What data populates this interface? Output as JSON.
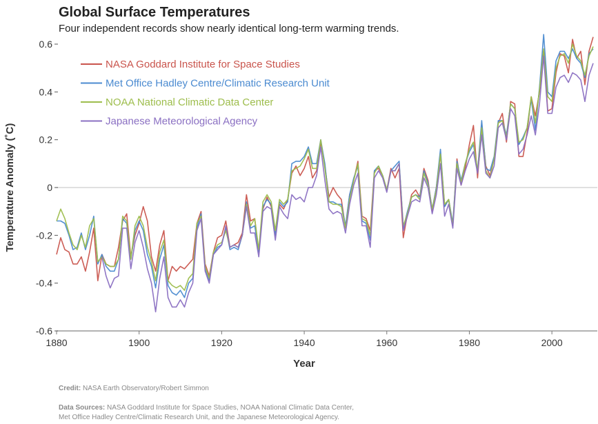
{
  "chart_data": {
    "type": "line",
    "title": "Global Surface Temperatures",
    "subtitle": "Four independent records show nearly identical long-term warming trends.",
    "xlabel": "Year",
    "ylabel": "Temperature Anomaly (˚C)",
    "xlim": [
      1880,
      2010
    ],
    "ylim": [
      -0.6,
      0.6
    ],
    "x_ticks": [
      1880,
      1900,
      1920,
      1940,
      1960,
      1980,
      2000
    ],
    "y_ticks": [
      0.6,
      0.4,
      0.2,
      0,
      -0.2,
      -0.4,
      -0.6
    ],
    "y_tick_labels": [
      "0.6",
      "0.4",
      "0.2",
      "0",
      "-0.2",
      "-0.4",
      "-0.6"
    ],
    "grid": "zero line only",
    "legend_position": "top-left",
    "series": [
      {
        "name": "NASA Goddard Institute for Space Studies",
        "color": "#c9544c",
        "values": [
          -0.28,
          -0.21,
          -0.26,
          -0.27,
          -0.32,
          -0.32,
          -0.29,
          -0.35,
          -0.27,
          -0.17,
          -0.39,
          -0.28,
          -0.32,
          -0.33,
          -0.33,
          -0.25,
          -0.14,
          -0.11,
          -0.29,
          -0.2,
          -0.15,
          -0.08,
          -0.14,
          -0.29,
          -0.35,
          -0.24,
          -0.18,
          -0.39,
          -0.33,
          -0.35,
          -0.33,
          -0.34,
          -0.32,
          -0.3,
          -0.15,
          -0.1,
          -0.32,
          -0.37,
          -0.27,
          -0.21,
          -0.2,
          -0.14,
          -0.25,
          -0.24,
          -0.23,
          -0.19,
          -0.03,
          -0.14,
          -0.13,
          -0.27,
          -0.09,
          -0.04,
          -0.08,
          -0.2,
          -0.07,
          -0.09,
          -0.05,
          0.06,
          0.09,
          0.05,
          0.08,
          0.13,
          0.04,
          0.07,
          0.19,
          0.09,
          -0.04,
          0.0,
          -0.03,
          -0.05,
          -0.17,
          -0.03,
          0.03,
          0.11,
          -0.12,
          -0.13,
          -0.18,
          0.07,
          0.08,
          0.05,
          -0.01,
          0.08,
          0.04,
          0.08,
          -0.21,
          -0.11,
          -0.03,
          -0.01,
          -0.04,
          0.08,
          0.03,
          -0.1,
          0.0,
          0.14,
          -0.08,
          -0.05,
          -0.16,
          0.12,
          0.01,
          0.08,
          0.18,
          0.26,
          0.04,
          0.26,
          0.09,
          0.05,
          0.12,
          0.27,
          0.31,
          0.19,
          0.36,
          0.35,
          0.13,
          0.13,
          0.23,
          0.38,
          0.3,
          0.4,
          0.57,
          0.32,
          0.33,
          0.48,
          0.56,
          0.55,
          0.48,
          0.62,
          0.54,
          0.57,
          0.43,
          0.57,
          0.63
        ]
      },
      {
        "name": "Met Office Hadley Centre/Climatic Research Unit",
        "color": "#4a8ad0",
        "values": [
          -0.14,
          -0.14,
          -0.15,
          -0.2,
          -0.26,
          -0.25,
          -0.19,
          -0.26,
          -0.2,
          -0.12,
          -0.32,
          -0.28,
          -0.33,
          -0.35,
          -0.35,
          -0.3,
          -0.13,
          -0.15,
          -0.3,
          -0.18,
          -0.14,
          -0.18,
          -0.28,
          -0.33,
          -0.42,
          -0.3,
          -0.24,
          -0.41,
          -0.44,
          -0.45,
          -0.43,
          -0.46,
          -0.4,
          -0.38,
          -0.17,
          -0.11,
          -0.34,
          -0.39,
          -0.28,
          -0.25,
          -0.24,
          -0.17,
          -0.26,
          -0.25,
          -0.26,
          -0.2,
          -0.06,
          -0.17,
          -0.16,
          -0.27,
          -0.08,
          -0.05,
          -0.07,
          -0.2,
          -0.06,
          -0.08,
          -0.06,
          0.1,
          0.11,
          0.11,
          0.13,
          0.17,
          0.1,
          0.1,
          0.2,
          0.1,
          -0.06,
          -0.06,
          -0.07,
          -0.07,
          -0.16,
          -0.03,
          0.04,
          0.09,
          -0.14,
          -0.15,
          -0.22,
          0.07,
          0.09,
          0.05,
          -0.01,
          0.07,
          0.09,
          0.11,
          -0.17,
          -0.1,
          -0.04,
          -0.03,
          -0.04,
          0.07,
          0.02,
          -0.09,
          0.0,
          0.16,
          -0.08,
          -0.05,
          -0.15,
          0.11,
          0.03,
          0.1,
          0.15,
          0.18,
          0.07,
          0.28,
          0.08,
          0.07,
          0.13,
          0.28,
          0.28,
          0.22,
          0.35,
          0.33,
          0.18,
          0.21,
          0.25,
          0.37,
          0.24,
          0.42,
          0.64,
          0.4,
          0.38,
          0.53,
          0.57,
          0.57,
          0.54,
          0.58,
          0.54,
          0.52,
          0.46,
          0.56,
          0.58
        ]
      },
      {
        "name": "NOAA National Climatic Data Center",
        "color": "#9dbd4c",
        "values": [
          -0.14,
          -0.09,
          -0.13,
          -0.19,
          -0.24,
          -0.26,
          -0.2,
          -0.25,
          -0.16,
          -0.13,
          -0.31,
          -0.29,
          -0.32,
          -0.33,
          -0.33,
          -0.3,
          -0.12,
          -0.14,
          -0.3,
          -0.16,
          -0.12,
          -0.16,
          -0.25,
          -0.31,
          -0.39,
          -0.27,
          -0.22,
          -0.39,
          -0.41,
          -0.42,
          -0.41,
          -0.43,
          -0.38,
          -0.36,
          -0.15,
          -0.12,
          -0.33,
          -0.38,
          -0.27,
          -0.24,
          -0.23,
          -0.18,
          -0.25,
          -0.24,
          -0.25,
          -0.2,
          -0.07,
          -0.16,
          -0.13,
          -0.26,
          -0.06,
          -0.03,
          -0.06,
          -0.18,
          -0.05,
          -0.07,
          -0.05,
          0.07,
          0.08,
          0.09,
          0.12,
          0.16,
          0.08,
          0.08,
          0.2,
          0.08,
          -0.06,
          -0.07,
          -0.07,
          -0.08,
          -0.17,
          -0.05,
          0.03,
          0.1,
          -0.13,
          -0.14,
          -0.2,
          0.06,
          0.09,
          0.05,
          -0.01,
          0.07,
          0.07,
          0.1,
          -0.16,
          -0.11,
          -0.04,
          -0.03,
          -0.05,
          0.06,
          0.01,
          -0.09,
          -0.01,
          0.14,
          -0.07,
          -0.05,
          -0.16,
          0.1,
          0.02,
          0.1,
          0.16,
          0.19,
          0.07,
          0.25,
          0.07,
          0.04,
          0.12,
          0.27,
          0.28,
          0.21,
          0.35,
          0.33,
          0.19,
          0.2,
          0.25,
          0.38,
          0.27,
          0.41,
          0.58,
          0.38,
          0.36,
          0.5,
          0.55,
          0.56,
          0.52,
          0.6,
          0.55,
          0.53,
          0.47,
          0.55,
          0.59
        ]
      },
      {
        "name": "Japanese Meteorological Agency",
        "color": "#8a6fc2",
        "values": [
          null,
          null,
          null,
          null,
          null,
          null,
          null,
          null,
          null,
          null,
          null,
          -0.29,
          -0.37,
          -0.42,
          -0.38,
          -0.37,
          -0.17,
          -0.17,
          -0.34,
          -0.23,
          -0.18,
          -0.25,
          -0.34,
          -0.4,
          -0.52,
          -0.38,
          -0.29,
          -0.46,
          -0.5,
          -0.5,
          -0.47,
          -0.5,
          -0.44,
          -0.4,
          -0.18,
          -0.13,
          -0.35,
          -0.4,
          -0.28,
          -0.26,
          -0.24,
          -0.16,
          -0.25,
          -0.24,
          -0.25,
          -0.2,
          -0.08,
          -0.19,
          -0.19,
          -0.29,
          -0.1,
          -0.08,
          -0.09,
          -0.22,
          -0.08,
          -0.11,
          -0.13,
          -0.03,
          -0.05,
          -0.04,
          -0.06,
          0.0,
          0.0,
          0.05,
          0.17,
          0.03,
          -0.09,
          -0.11,
          -0.1,
          -0.11,
          -0.19,
          -0.07,
          0.01,
          0.06,
          -0.16,
          -0.16,
          -0.25,
          0.04,
          0.07,
          0.04,
          -0.02,
          0.07,
          0.07,
          0.1,
          -0.18,
          -0.12,
          -0.06,
          -0.05,
          -0.06,
          0.04,
          0.0,
          -0.11,
          -0.03,
          0.1,
          -0.12,
          -0.07,
          -0.17,
          0.08,
          0.01,
          0.07,
          0.12,
          0.15,
          0.06,
          0.22,
          0.06,
          0.04,
          0.09,
          0.25,
          0.27,
          0.2,
          0.33,
          0.3,
          0.14,
          0.16,
          0.22,
          0.3,
          0.22,
          0.35,
          0.55,
          0.31,
          0.31,
          0.42,
          0.46,
          0.47,
          0.44,
          0.48,
          0.47,
          0.45,
          0.36,
          0.47,
          0.52
        ]
      }
    ]
  },
  "footer": {
    "credit_label": "Credit:",
    "credit_text": " NASA Earth Observatory/Robert Simmon",
    "sources_label": "Data Sources:",
    "sources_line1": " NASA Goddard Institute for Space Studies, NOAA National Climatic Data Center,",
    "sources_line2": "Met Office Hadley Centre/Climatic Research Unit, and the Japanese Meteorological Agency."
  }
}
